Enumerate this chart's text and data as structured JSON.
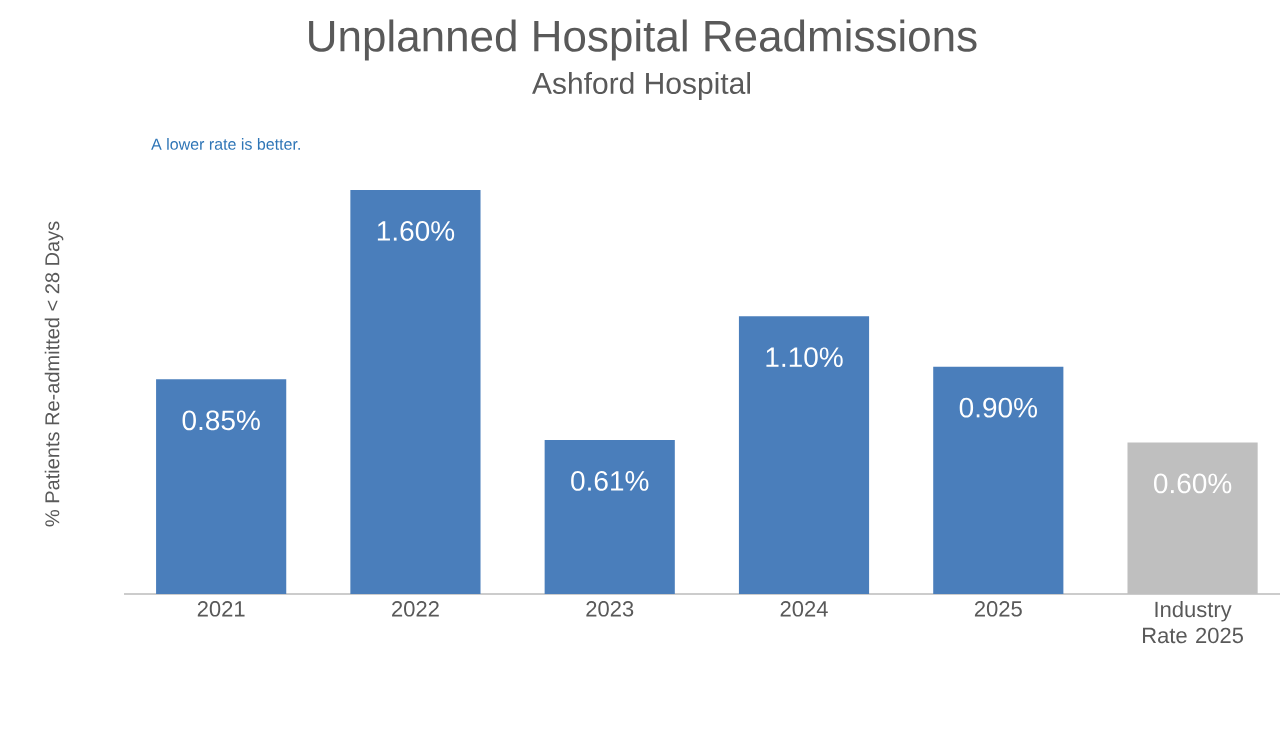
{
  "chart_data": {
    "type": "bar",
    "title": "Unplanned Hospital Readmissions",
    "subtitle": "Ashford Hospital",
    "ylabel": "% Patients Re-admitted < 28 Days",
    "annotations": [
      "A lower rate is better."
    ],
    "categories": [
      "2021",
      "2022",
      "2023",
      "2024",
      "2025",
      "Industry Rate 2025"
    ],
    "values": [
      0.85,
      1.6,
      0.61,
      1.1,
      0.9,
      0.6
    ],
    "value_labels": [
      "0.85%",
      "1.60%",
      "0.61%",
      "1.10%",
      "0.90%",
      "0.60%"
    ],
    "colors": [
      "#4a7ebb",
      "#4a7ebb",
      "#4a7ebb",
      "#4a7ebb",
      "#4a7ebb",
      "#bfbfbf"
    ]
  }
}
